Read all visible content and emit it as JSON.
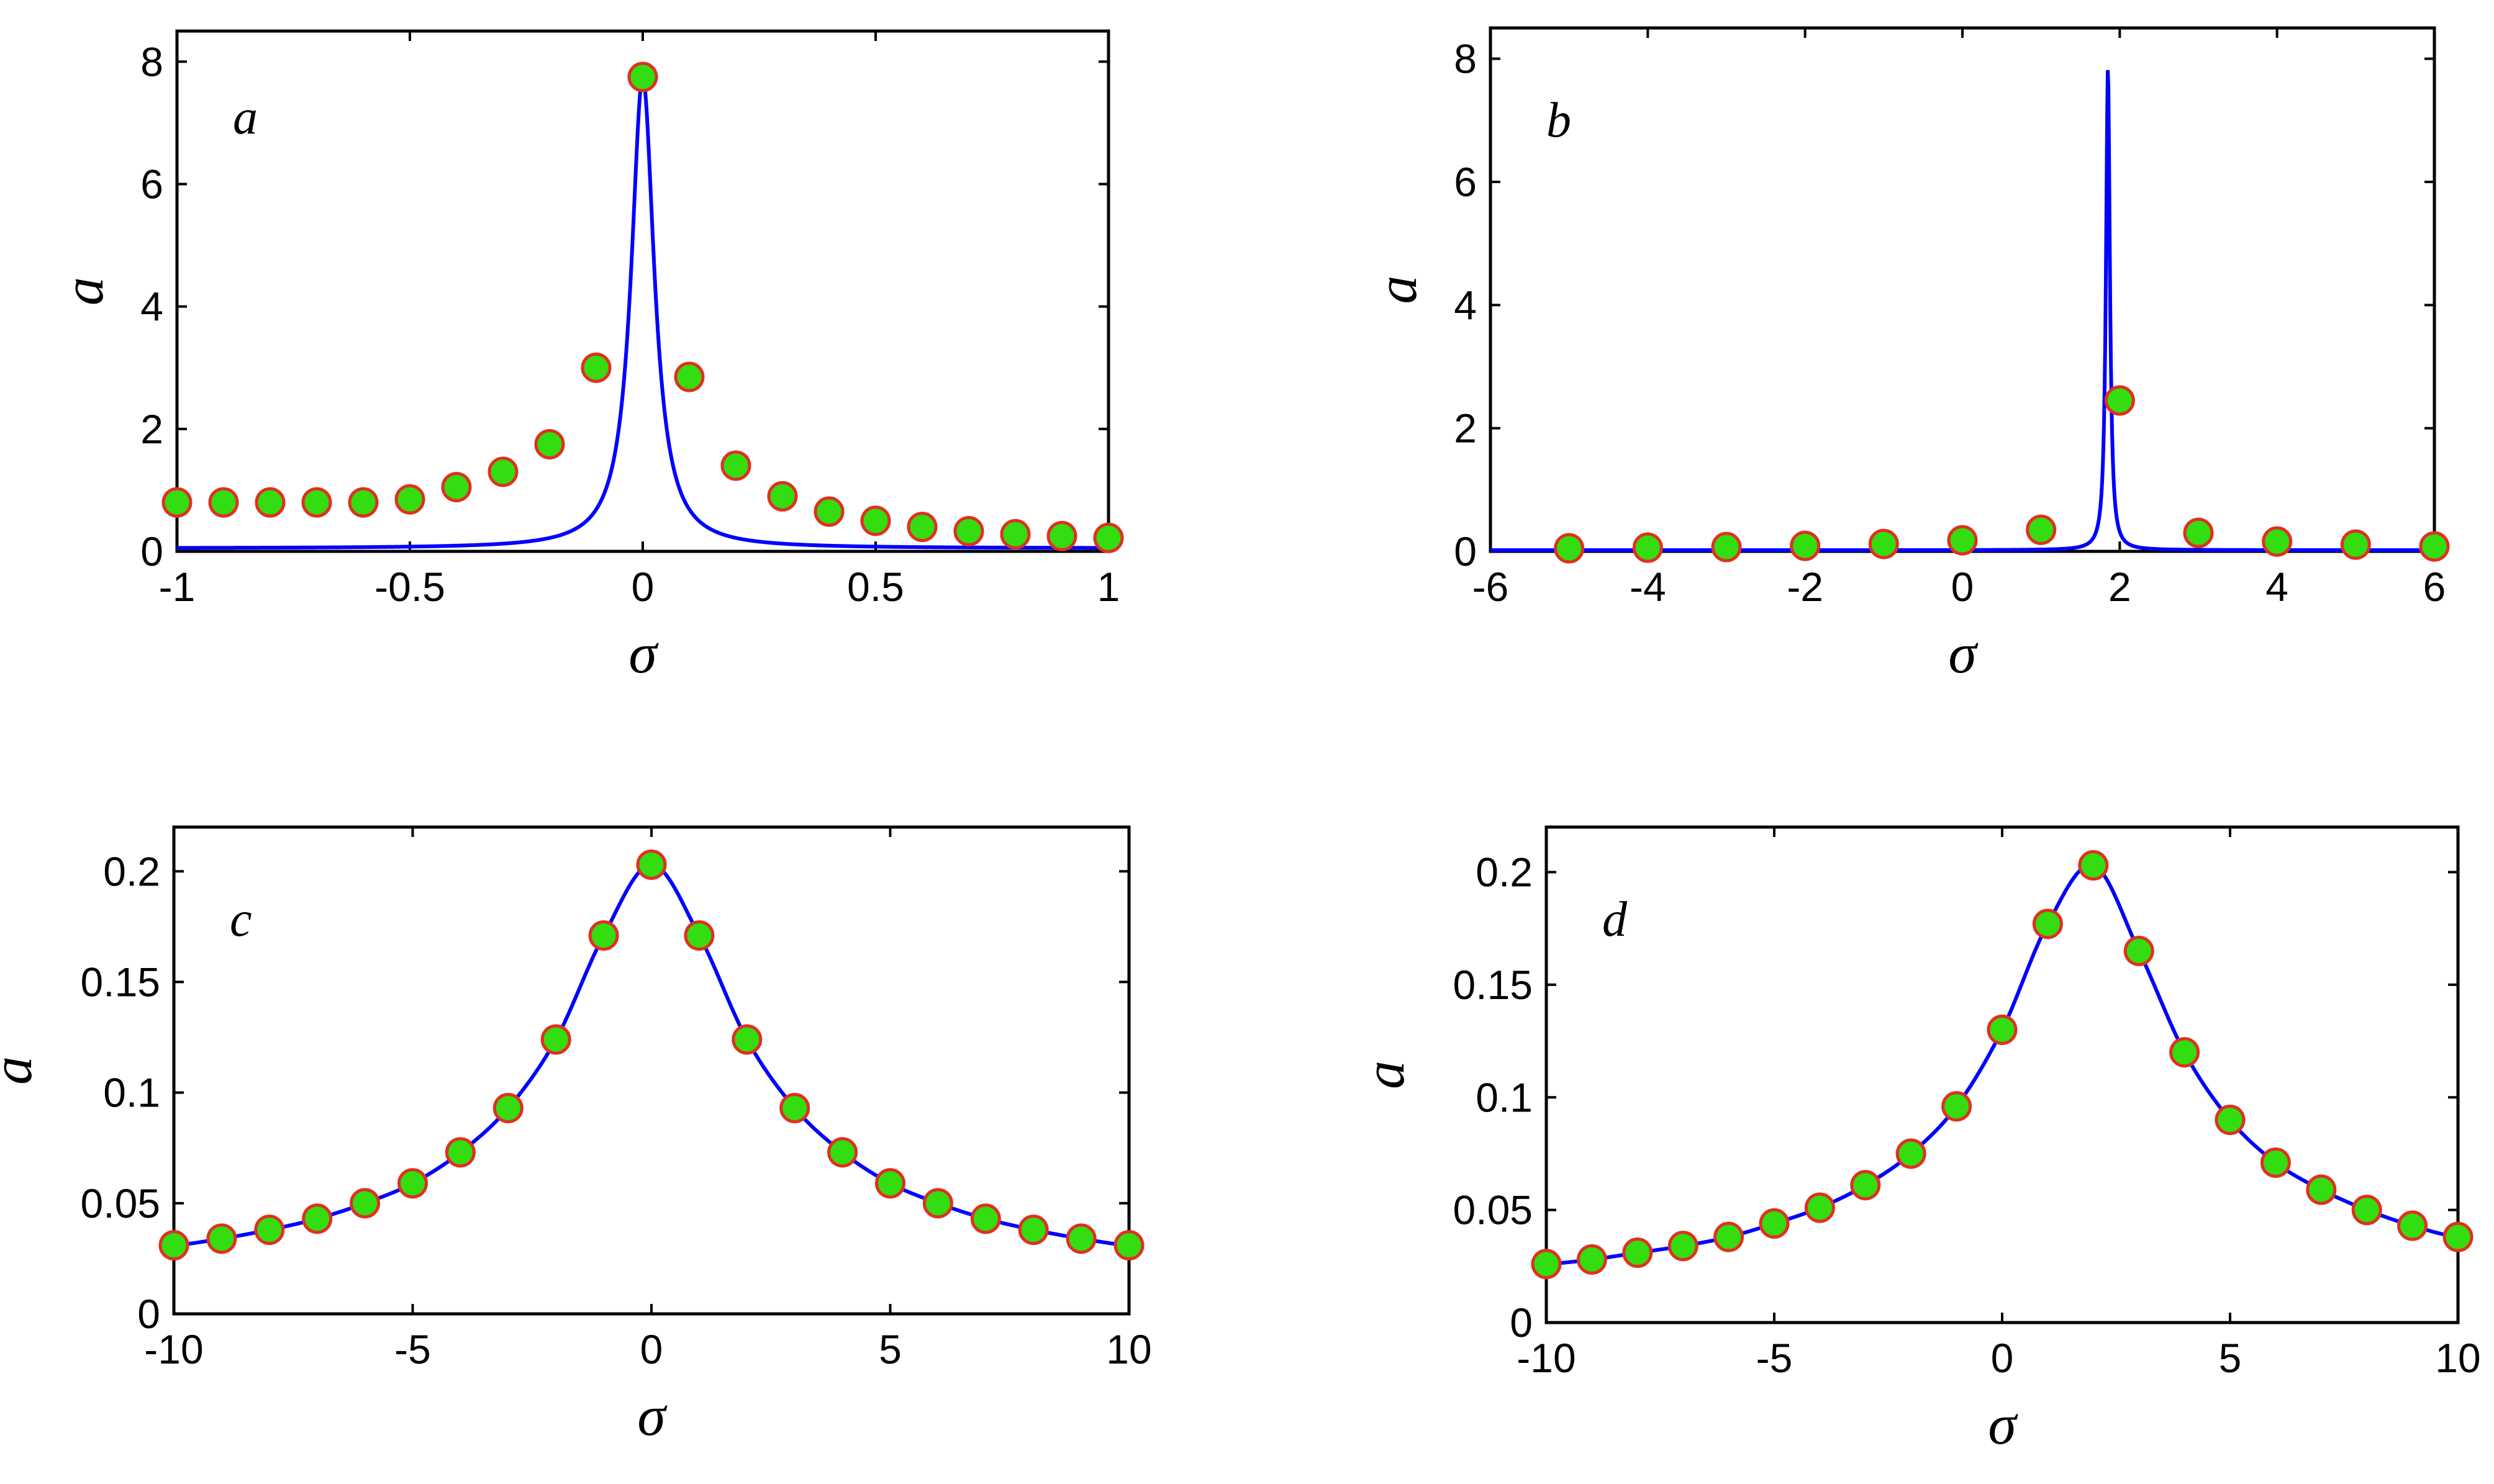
{
  "chart_data": [
    {
      "type": "line",
      "panel_label": "a",
      "xlabel": "σ",
      "ylabel": "a",
      "xlim": [
        -1,
        1
      ],
      "ylim": [
        0,
        8.5
      ],
      "xticks": [
        -1,
        -0.5,
        0,
        0.5,
        1
      ],
      "xtick_labels": [
        "-1",
        "-0.5",
        "0",
        "0.5",
        "1"
      ],
      "yticks": [
        0,
        2,
        4,
        6,
        8
      ],
      "ytick_labels": [
        "0",
        "2",
        "4",
        "6",
        "8"
      ],
      "grid": false,
      "line_color": "#0000ff",
      "curve": {
        "center": 0,
        "peak": 7.75,
        "width": 0.03,
        "baseline": 0.05
      },
      "points": {
        "x": [
          -1,
          -0.9,
          -0.8,
          -0.7,
          -0.6,
          -0.5,
          -0.4,
          -0.3,
          -0.2,
          -0.1,
          0,
          0.1,
          0.2,
          0.3,
          0.4,
          0.5,
          0.6,
          0.7,
          0.8,
          0.9,
          1
        ],
        "y": [
          0.8,
          0.8,
          0.8,
          0.8,
          0.8,
          0.85,
          1.05,
          1.3,
          1.75,
          3.0,
          7.75,
          2.85,
          1.4,
          0.9,
          0.65,
          0.5,
          0.4,
          0.33,
          0.28,
          0.25,
          0.22
        ]
      }
    },
    {
      "type": "line",
      "panel_label": "b",
      "xlabel": "σ",
      "ylabel": "a",
      "xlim": [
        -6,
        6
      ],
      "ylim": [
        0,
        8.5
      ],
      "xticks": [
        -6,
        -4,
        -2,
        0,
        2,
        4,
        6
      ],
      "xtick_labels": [
        "-6",
        "-4",
        "-2",
        "0",
        "2",
        "4",
        "6"
      ],
      "yticks": [
        0,
        2,
        4,
        6,
        8
      ],
      "ytick_labels": [
        "0",
        "2",
        "4",
        "6",
        "8"
      ],
      "grid": false,
      "line_color": "#0000ff",
      "curve": {
        "center": 1.85,
        "peak": 7.85,
        "width": 0.03,
        "baseline": 0.02
      },
      "points": {
        "x": [
          -5,
          -4,
          -3,
          -2,
          -1,
          0,
          1,
          2,
          3,
          4,
          5,
          6
        ],
        "y": [
          0.05,
          0.06,
          0.07,
          0.09,
          0.12,
          0.18,
          0.35,
          2.45,
          0.3,
          0.16,
          0.11,
          0.08
        ]
      }
    },
    {
      "type": "line",
      "panel_label": "c",
      "xlabel": "σ",
      "ylabel": "a",
      "xlim": [
        -10,
        10
      ],
      "ylim": [
        0,
        0.22
      ],
      "xticks": [
        -10,
        -5,
        0,
        5,
        10
      ],
      "xtick_labels": [
        "-10",
        "-5",
        "0",
        "5",
        "10"
      ],
      "yticks": [
        0,
        0.05,
        0.1,
        0.15,
        0.2
      ],
      "ytick_labels": [
        "0",
        "0.05",
        "0.1",
        "0.15",
        "0.2"
      ],
      "grid": false,
      "line_color": "#0000ff",
      "curve": {
        "type": "interp"
      },
      "points": {
        "x": [
          -10,
          -9,
          -8,
          -7,
          -6,
          -5,
          -4,
          -3,
          -2,
          -1,
          0,
          1,
          2,
          3,
          4,
          5,
          6,
          7,
          8,
          9,
          10
        ],
        "y": [
          0.031,
          0.034,
          0.038,
          0.043,
          0.05,
          0.059,
          0.073,
          0.093,
          0.124,
          0.171,
          0.203,
          0.171,
          0.124,
          0.093,
          0.073,
          0.059,
          0.05,
          0.043,
          0.038,
          0.034,
          0.031
        ]
      }
    },
    {
      "type": "line",
      "panel_label": "d",
      "xlabel": "σ",
      "ylabel": "a",
      "xlim": [
        -10,
        10
      ],
      "ylim": [
        0,
        0.22
      ],
      "xticks": [
        -10,
        -5,
        0,
        5,
        10
      ],
      "xtick_labels": [
        "-10",
        "-5",
        "0",
        "5",
        "10"
      ],
      "yticks": [
        0,
        0.05,
        0.1,
        0.15,
        0.2
      ],
      "ytick_labels": [
        "0",
        "0.05",
        "0.1",
        "0.15",
        "0.2"
      ],
      "grid": false,
      "line_color": "#0000ff",
      "curve": {
        "type": "interp"
      },
      "points": {
        "x": [
          -10,
          -9,
          -8,
          -7,
          -6,
          -5,
          -4,
          -3,
          -2,
          -1,
          0,
          1,
          2,
          3,
          4,
          5,
          6,
          7,
          8,
          9,
          10
        ],
        "y": [
          0.026,
          0.028,
          0.031,
          0.034,
          0.038,
          0.044,
          0.051,
          0.061,
          0.075,
          0.096,
          0.13,
          0.177,
          0.203,
          0.165,
          0.12,
          0.09,
          0.071,
          0.059,
          0.05,
          0.043,
          0.038
        ]
      }
    }
  ],
  "marker_style": {
    "fill": "#33dd11",
    "stroke": "#e03020"
  }
}
